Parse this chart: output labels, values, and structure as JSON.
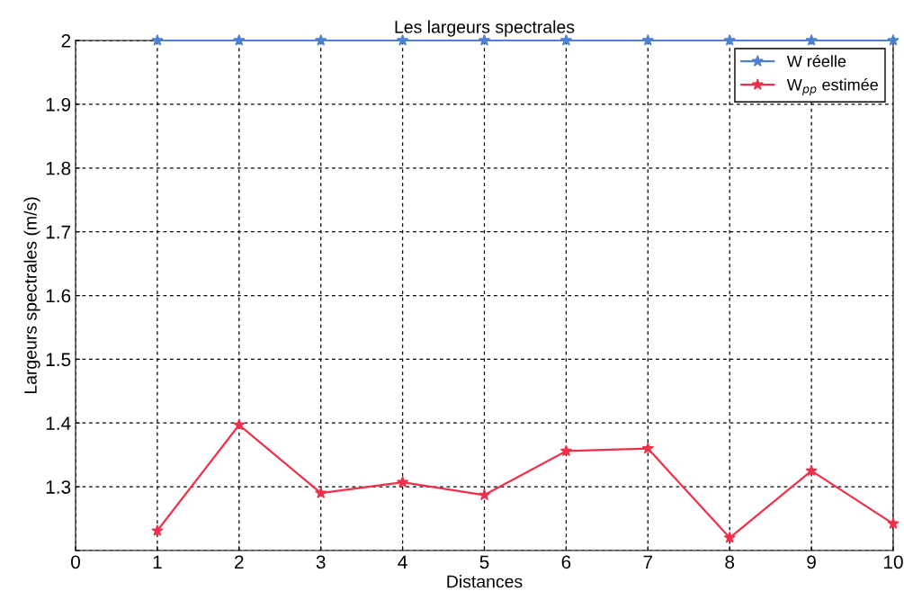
{
  "chart_data": {
    "type": "line",
    "title": "Les largeurs spectrales",
    "xlabel": "Distances",
    "ylabel": "Largeurs spectrales (m/s)",
    "x": [
      1,
      2,
      3,
      4,
      5,
      6,
      7,
      8,
      9,
      10
    ],
    "series": [
      {
        "name": "W réelle",
        "color": "#4f7fd0",
        "values": [
          2,
          2,
          2,
          2,
          2,
          2,
          2,
          2,
          2,
          2
        ]
      },
      {
        "name": "W$_{pp}$ estimée",
        "color": "#f0304a",
        "values": [
          1.231,
          1.397,
          1.29,
          1.307,
          1.287,
          1.356,
          1.36,
          1.22,
          1.325,
          1.242
        ]
      }
    ],
    "xlim": [
      0,
      10
    ],
    "xticks": [
      0,
      1,
      2,
      3,
      4,
      5,
      6,
      7,
      8,
      9,
      10
    ],
    "ylim": [
      1.2,
      2
    ],
    "yticks": [
      {
        "value": 1.2,
        "label": null
      },
      1.3,
      1.4,
      1.5,
      1.6,
      1.7,
      1.8,
      1.9,
      2
    ],
    "grid": true,
    "legend": "top right",
    "marker": "star",
    "line_style": "solid"
  }
}
